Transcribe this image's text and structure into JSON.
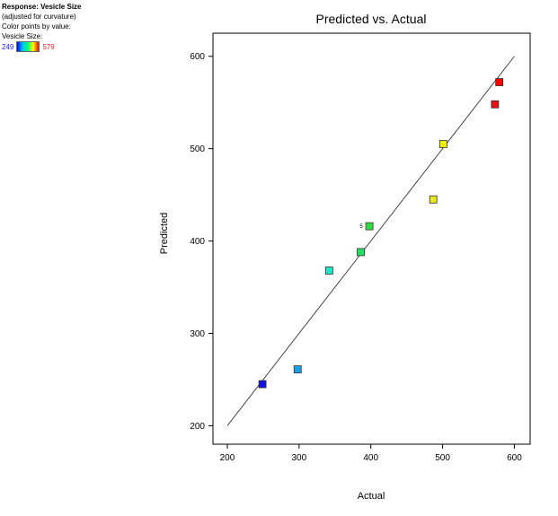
{
  "legend": {
    "response_title": "Response: Vesicle Size",
    "subtitle": "(adjusted for curvature)",
    "color_by": "Color points by value:",
    "variable_label": "Vesicle Size:",
    "min_value": "249",
    "max_value": "579"
  },
  "colors": {
    "low": "#0000ff",
    "mid_low": "#00c0ff",
    "mid": "#00ff80",
    "mid_high": "#ffff00",
    "high": "#ff0000"
  },
  "chart_data": {
    "type": "scatter",
    "title": "Predicted vs. Actual",
    "xlabel": "Actual",
    "ylabel": "Predicted",
    "xlim": [
      180,
      622
    ],
    "ylim": [
      180,
      625
    ],
    "x_ticks": [
      200,
      300,
      400,
      500,
      600
    ],
    "y_ticks": [
      200,
      300,
      400,
      500,
      600
    ],
    "reference_line": {
      "x": [
        200,
        600
      ],
      "y": [
        200,
        600
      ]
    },
    "grid": false,
    "points": [
      {
        "x": 249,
        "y": 245,
        "color": "#1010e0"
      },
      {
        "x": 298,
        "y": 261,
        "color": "#1aa0e8"
      },
      {
        "x": 342,
        "y": 368,
        "color": "#20e8c8"
      },
      {
        "x": 386,
        "y": 388,
        "color": "#20e060"
      },
      {
        "x": 398,
        "y": 416,
        "color": "#30e040",
        "label": "5"
      },
      {
        "x": 487,
        "y": 445,
        "color": "#e8e820"
      },
      {
        "x": 501,
        "y": 505,
        "color": "#f0f000"
      },
      {
        "x": 573,
        "y": 548,
        "color": "#e81010"
      },
      {
        "x": 579,
        "y": 572,
        "color": "#ff0000"
      }
    ]
  }
}
